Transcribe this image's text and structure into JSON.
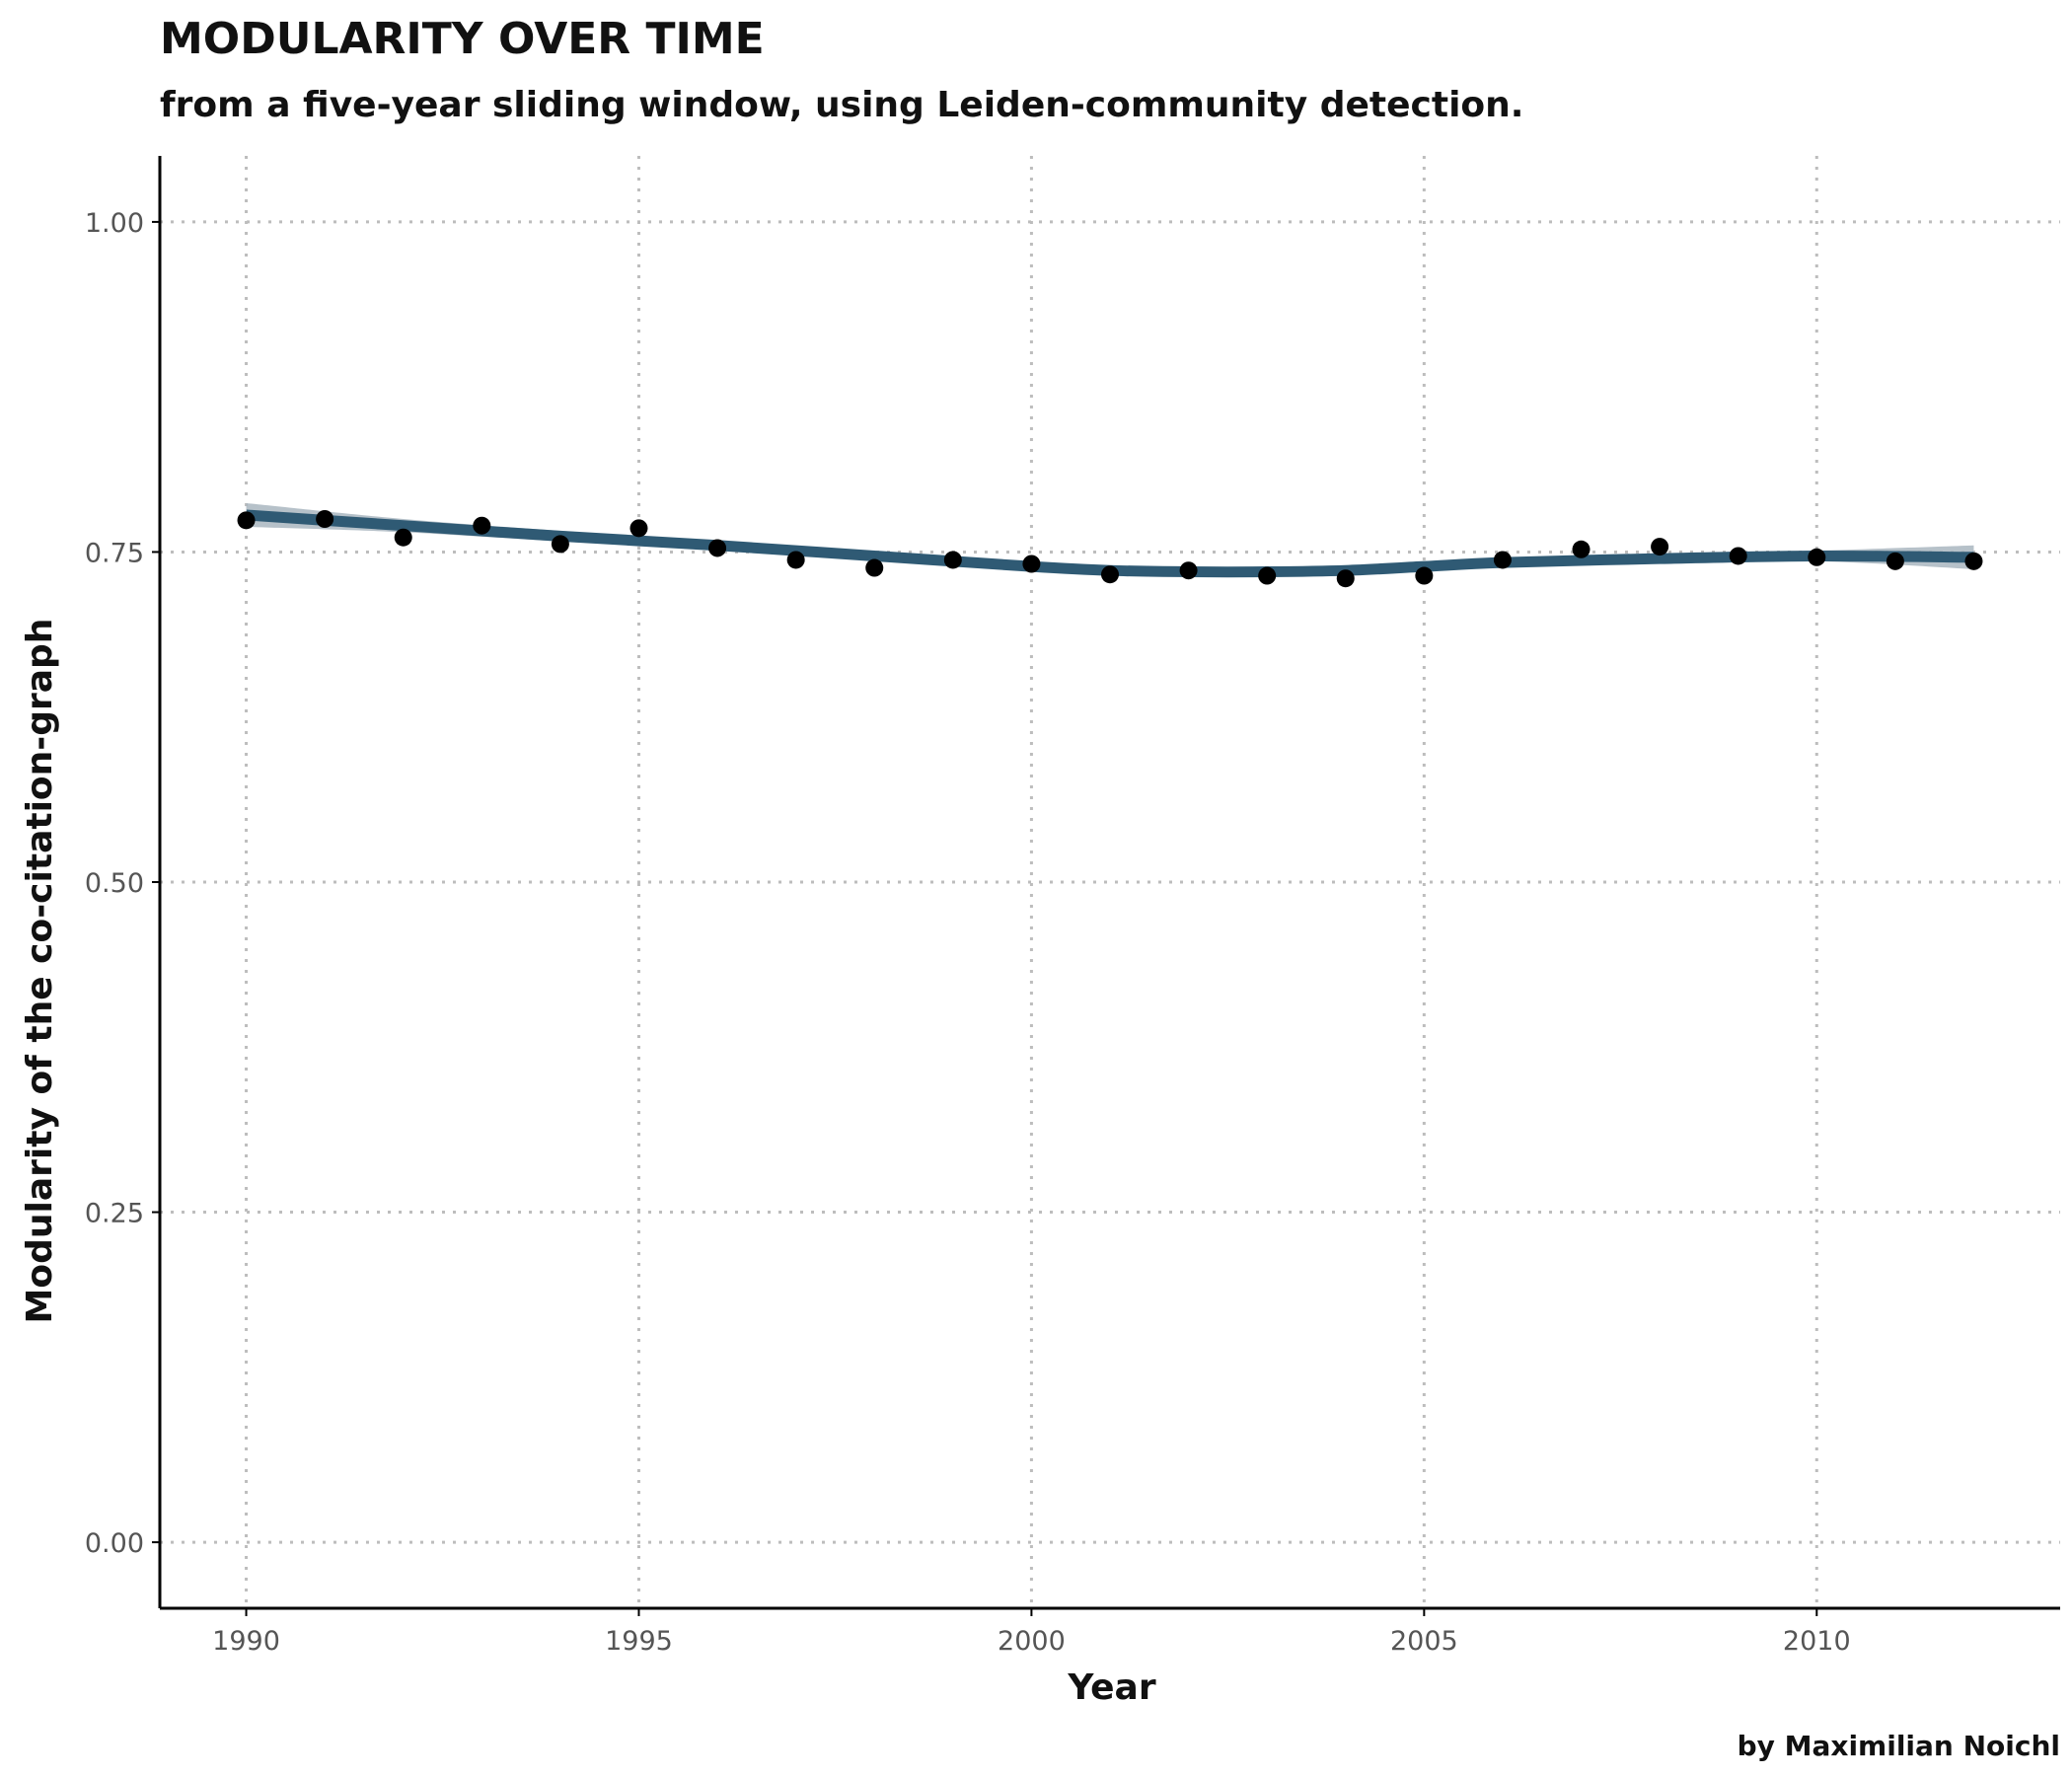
{
  "chart_data": {
    "type": "scatter",
    "title": "MODULARITY OVER TIME",
    "subtitle": "from a five-year sliding window, using Leiden-community detection.",
    "xlabel": "Year",
    "ylabel": "Modularity of the co-citation-graph",
    "caption": "by Maximilian Noichl",
    "xlim": [
      1988.9,
      2013.1
    ],
    "ylim": [
      -0.05,
      1.05
    ],
    "x_ticks": [
      1990,
      1995,
      2000,
      2005,
      2010
    ],
    "y_ticks": [
      0.0,
      0.25,
      0.5,
      0.75,
      1.0
    ],
    "y_tick_labels": [
      "0.00",
      "0.25",
      "0.50",
      "0.75",
      "1.00"
    ],
    "grid": "dotted major gridlines",
    "series": [
      {
        "x": [
          1990,
          1991,
          1992,
          1993,
          1994,
          1995,
          1996,
          1997,
          1998,
          1999,
          2000,
          2001,
          2002,
          2003,
          2004,
          2005,
          2006,
          2007,
          2008,
          2009,
          2010,
          2011,
          2012
        ],
        "values": [
          0.774,
          0.775,
          0.761,
          0.77,
          0.756,
          0.768,
          0.753,
          0.744,
          0.738,
          0.744,
          0.741,
          0.733,
          0.736,
          0.732,
          0.73,
          0.732,
          0.744,
          0.752,
          0.754,
          0.747,
          0.746,
          0.743,
          0.743
        ]
      }
    ],
    "smooth": {
      "x": [
        1990,
        1992,
        1994,
        1996,
        1998,
        2000,
        2001,
        2002,
        2003,
        2004,
        2005,
        2006,
        2008,
        2010,
        2012
      ],
      "values": [
        0.778,
        0.77,
        0.762,
        0.755,
        0.747,
        0.739,
        0.736,
        0.735,
        0.735,
        0.736,
        0.739,
        0.742,
        0.745,
        0.747,
        0.746
      ],
      "band_halfwidth": [
        0.009,
        0.005,
        0.004,
        0.003,
        0.003,
        0.003,
        0.003,
        0.003,
        0.003,
        0.003,
        0.003,
        0.003,
        0.003,
        0.004,
        0.009
      ]
    },
    "colors": {
      "points": "#000000",
      "smooth_line": "#2f5a74",
      "band": "#a9b6bf",
      "grid": "#bdbdbd",
      "axis": "#000000"
    }
  }
}
